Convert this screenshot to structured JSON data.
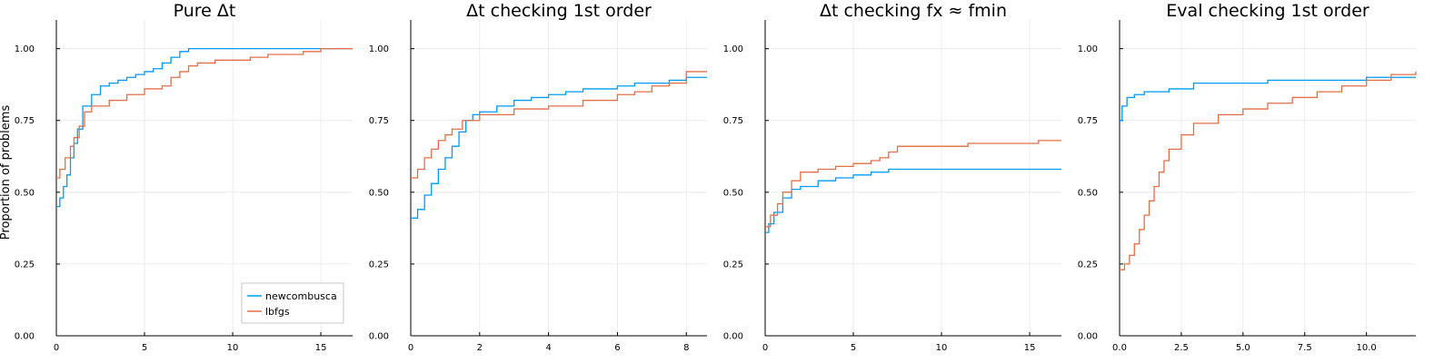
{
  "figure": {
    "ylabel": "Proportion of problems",
    "colors": {
      "newcombusca": "#009af9",
      "lbfgs": "#e26f46"
    }
  },
  "chart_data": [
    {
      "type": "line",
      "title": "Pure Δt",
      "xlabel": "",
      "ylabel": "Proportion of problems",
      "xlim": [
        0,
        16.8
      ],
      "ylim": [
        0,
        1.1
      ],
      "xticks": [
        0,
        5,
        10,
        15
      ],
      "xtick_labels": [
        "0",
        "5",
        "10",
        "15"
      ],
      "yticks": [
        0,
        0.25,
        0.5,
        0.75,
        1.0
      ],
      "ytick_labels": [
        "0.00",
        "0.25",
        "0.50",
        "0.75",
        "1.00"
      ],
      "grid": true,
      "legend": "bottom-right",
      "series": [
        {
          "name": "newcombusca",
          "color": "#009af9",
          "x": [
            0,
            0.2,
            0.4,
            0.6,
            0.8,
            1.0,
            1.2,
            1.5,
            2.0,
            2.5,
            3.0,
            3.5,
            4.0,
            4.5,
            5.0,
            5.5,
            6.0,
            6.5,
            7.0,
            7.5,
            8.0,
            10.0,
            12.0,
            15.0,
            16.8
          ],
          "y": [
            0.45,
            0.48,
            0.52,
            0.56,
            0.62,
            0.67,
            0.72,
            0.8,
            0.84,
            0.87,
            0.88,
            0.89,
            0.9,
            0.91,
            0.92,
            0.93,
            0.95,
            0.97,
            0.99,
            1.0,
            1.0,
            1.0,
            1.0,
            1.0,
            1.0
          ]
        },
        {
          "name": "lbfgs",
          "color": "#e26f46",
          "x": [
            0,
            0.2,
            0.5,
            0.8,
            1.0,
            1.3,
            1.6,
            2.0,
            3.0,
            4.0,
            5.0,
            6.0,
            6.5,
            7.0,
            7.5,
            8.0,
            9.0,
            10.0,
            11.0,
            12.0,
            13.0,
            14.0,
            15.0,
            16.8
          ],
          "y": [
            0.55,
            0.58,
            0.62,
            0.66,
            0.69,
            0.73,
            0.78,
            0.8,
            0.82,
            0.84,
            0.86,
            0.87,
            0.9,
            0.92,
            0.94,
            0.95,
            0.96,
            0.96,
            0.97,
            0.98,
            0.98,
            0.99,
            1.0,
            1.0
          ]
        }
      ]
    },
    {
      "type": "line",
      "title": "Δt checking 1st order",
      "xlabel": "",
      "ylabel": "",
      "xlim": [
        0,
        8.6
      ],
      "ylim": [
        0,
        1.1
      ],
      "xticks": [
        0,
        2,
        4,
        6,
        8
      ],
      "xtick_labels": [
        "0",
        "2",
        "4",
        "6",
        "8"
      ],
      "yticks": [
        0,
        0.25,
        0.5,
        0.75,
        1.0
      ],
      "ytick_labels": [
        "0.00",
        "0.25",
        "0.50",
        "0.75",
        "1.00"
      ],
      "grid": true,
      "series": [
        {
          "name": "newcombusca",
          "color": "#009af9",
          "x": [
            0,
            0.2,
            0.4,
            0.6,
            0.8,
            1.0,
            1.2,
            1.4,
            1.6,
            1.8,
            2.0,
            2.5,
            3.0,
            3.5,
            4.0,
            4.5,
            5.0,
            5.5,
            6.0,
            6.5,
            7.0,
            7.5,
            8.0,
            8.6
          ],
          "y": [
            0.41,
            0.44,
            0.49,
            0.53,
            0.58,
            0.62,
            0.66,
            0.71,
            0.75,
            0.77,
            0.78,
            0.8,
            0.82,
            0.83,
            0.84,
            0.85,
            0.86,
            0.86,
            0.87,
            0.88,
            0.88,
            0.89,
            0.9,
            0.9
          ]
        },
        {
          "name": "lbfgs",
          "color": "#e26f46",
          "x": [
            0,
            0.2,
            0.4,
            0.6,
            0.8,
            1.0,
            1.2,
            1.5,
            2.0,
            3.0,
            4.0,
            5.0,
            6.0,
            6.5,
            7.0,
            7.5,
            8.0,
            8.6
          ],
          "y": [
            0.55,
            0.58,
            0.62,
            0.65,
            0.68,
            0.7,
            0.72,
            0.75,
            0.77,
            0.79,
            0.8,
            0.82,
            0.84,
            0.85,
            0.87,
            0.88,
            0.92,
            0.92
          ]
        }
      ]
    },
    {
      "type": "line",
      "title": "Δt checking fx ≈ fmin",
      "xlabel": "",
      "ylabel": "",
      "xlim": [
        0,
        16.8
      ],
      "ylim": [
        0,
        1.1
      ],
      "xticks": [
        0,
        5,
        10,
        15
      ],
      "xtick_labels": [
        "0",
        "5",
        "10",
        "15"
      ],
      "yticks": [
        0,
        0.25,
        0.5,
        0.75,
        1.0
      ],
      "ytick_labels": [
        "0.00",
        "0.25",
        "0.50",
        "0.75",
        "1.00"
      ],
      "grid": true,
      "series": [
        {
          "name": "newcombusca",
          "color": "#009af9",
          "x": [
            0,
            0.2,
            0.5,
            1.0,
            1.5,
            2.0,
            3.0,
            4.0,
            5.0,
            6.0,
            7.0,
            8.0,
            10.0,
            12.0,
            15.0,
            16.8
          ],
          "y": [
            0.36,
            0.39,
            0.43,
            0.48,
            0.51,
            0.52,
            0.54,
            0.55,
            0.56,
            0.57,
            0.58,
            0.58,
            0.58,
            0.58,
            0.58,
            0.58
          ]
        },
        {
          "name": "lbfgs",
          "color": "#e26f46",
          "x": [
            0,
            0.3,
            0.7,
            1.0,
            1.5,
            2.0,
            3.0,
            4.0,
            5.0,
            6.0,
            6.5,
            7.0,
            7.5,
            10.0,
            11.5,
            14.0,
            15.5,
            16.8
          ],
          "y": [
            0.38,
            0.42,
            0.46,
            0.5,
            0.54,
            0.57,
            0.58,
            0.59,
            0.6,
            0.61,
            0.62,
            0.64,
            0.66,
            0.66,
            0.67,
            0.67,
            0.68,
            0.68
          ]
        }
      ]
    },
    {
      "type": "line",
      "title": "Eval checking 1st order",
      "xlabel": "",
      "ylabel": "",
      "xlim": [
        0,
        12
      ],
      "ylim": [
        0,
        1.1
      ],
      "xticks": [
        0,
        2.5,
        5,
        7.5,
        10
      ],
      "xtick_labels": [
        "0.0",
        "2.5",
        "5.0",
        "7.5",
        "10.0"
      ],
      "yticks": [
        0,
        0.25,
        0.5,
        0.75,
        1.0
      ],
      "ytick_labels": [
        "0.00",
        "0.25",
        "0.50",
        "0.75",
        "1.00"
      ],
      "grid": true,
      "series": [
        {
          "name": "newcombusca",
          "color": "#009af9",
          "x": [
            0,
            0.1,
            0.3,
            0.6,
            1.0,
            2.0,
            3.0,
            4.0,
            6.0,
            8.0,
            10.0,
            12.0
          ],
          "y": [
            0.75,
            0.8,
            0.83,
            0.84,
            0.85,
            0.86,
            0.88,
            0.88,
            0.89,
            0.89,
            0.9,
            0.9
          ]
        },
        {
          "name": "lbfgs",
          "color": "#e26f46",
          "x": [
            0,
            0.2,
            0.4,
            0.6,
            0.8,
            1.0,
            1.2,
            1.4,
            1.6,
            1.8,
            2.0,
            2.5,
            3.0,
            4.0,
            5.0,
            6.0,
            7.0,
            8.0,
            9.0,
            10.0,
            11.0,
            12.0
          ],
          "y": [
            0.23,
            0.25,
            0.28,
            0.32,
            0.37,
            0.42,
            0.47,
            0.52,
            0.57,
            0.61,
            0.65,
            0.7,
            0.74,
            0.77,
            0.79,
            0.81,
            0.83,
            0.85,
            0.87,
            0.89,
            0.91,
            0.92
          ]
        }
      ]
    }
  ]
}
